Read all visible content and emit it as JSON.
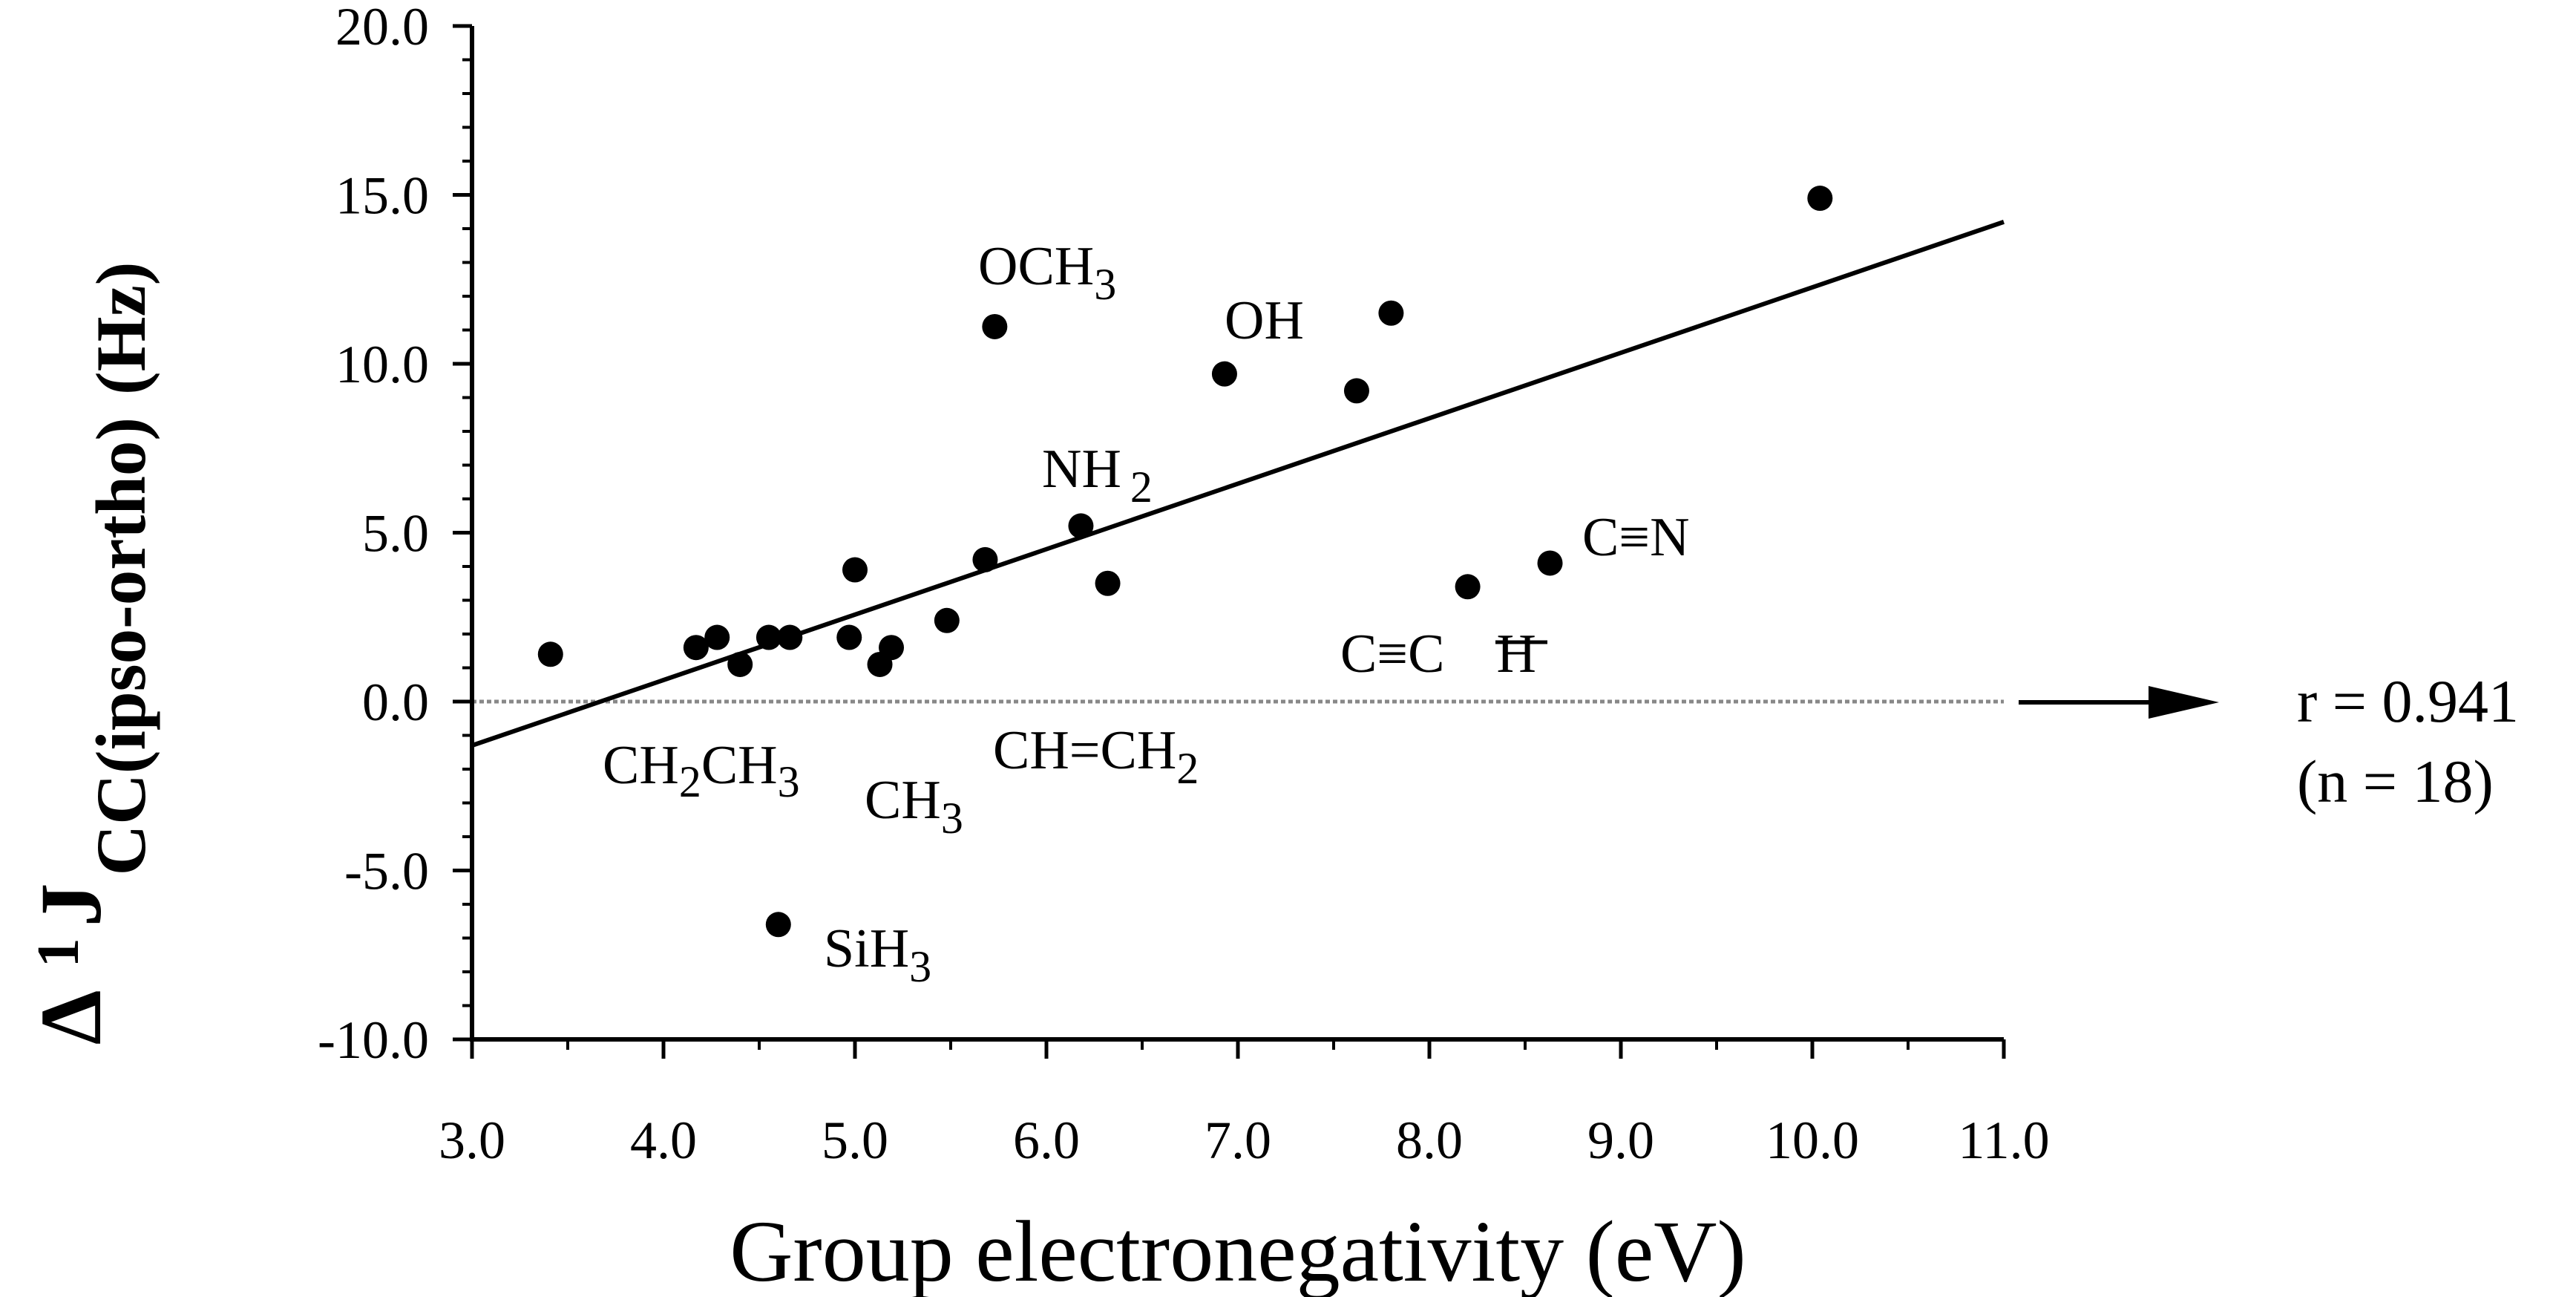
{
  "chart_data": {
    "type": "scatter",
    "title": "",
    "xlabel": "Group electronegativity (eV)",
    "ylabel": {
      "delta": "Δ",
      "superscript": "1",
      "symbol": "J",
      "subscript": "CC(ipso-ortho)",
      "unit": "(Hz)"
    },
    "xlim": [
      3.0,
      11.0
    ],
    "ylim": [
      -10.0,
      20.0
    ],
    "x_ticks": [
      "3.0",
      "4.0",
      "5.0",
      "6.0",
      "7.0",
      "8.0",
      "9.0",
      "10.0",
      "11.0"
    ],
    "y_ticks": [
      "-10.0",
      "-5.0",
      "0.0",
      "5.0",
      "10.0",
      "15.0",
      "20.0"
    ],
    "reference_line_y": 0.0,
    "points": [
      {
        "x": 3.41,
        "y": 1.4
      },
      {
        "x": 4.17,
        "y": 1.6
      },
      {
        "x": 4.28,
        "y": 1.9
      },
      {
        "x": 4.4,
        "y": 1.1
      },
      {
        "x": 4.55,
        "y": 1.9
      },
      {
        "x": 4.6,
        "y": -6.6
      },
      {
        "x": 4.66,
        "y": 1.9
      },
      {
        "x": 4.97,
        "y": 1.9
      },
      {
        "x": 5.0,
        "y": 3.9
      },
      {
        "x": 5.13,
        "y": 1.1
      },
      {
        "x": 5.19,
        "y": 1.6
      },
      {
        "x": 5.48,
        "y": 2.4
      },
      {
        "x": 5.68,
        "y": 4.2
      },
      {
        "x": 5.73,
        "y": 11.1
      },
      {
        "x": 6.18,
        "y": 5.2
      },
      {
        "x": 6.32,
        "y": 3.5
      },
      {
        "x": 6.93,
        "y": 9.7
      },
      {
        "x": 7.62,
        "y": 9.2
      },
      {
        "x": 7.8,
        "y": 11.5
      },
      {
        "x": 8.2,
        "y": 3.4
      },
      {
        "x": 8.63,
        "y": 4.1
      },
      {
        "x": 10.04,
        "y": 14.9
      }
    ],
    "regression": {
      "x": [
        3.0,
        11.0
      ],
      "y": [
        -1.3,
        14.2
      ]
    },
    "annotations": [
      {
        "name": "och3",
        "base": "OCH",
        "sub": "3",
        "tail": ""
      },
      {
        "name": "oh",
        "base": "OH",
        "sub": "",
        "tail": ""
      },
      {
        "name": "nh2",
        "base": "NH",
        "sub": "2",
        "tail": ""
      },
      {
        "name": "cn",
        "base": "C≡N",
        "sub": "",
        "tail": ""
      },
      {
        "name": "ccch",
        "base": "C≡C",
        "sub": "",
        "tail": "H"
      },
      {
        "name": "ch2ch3",
        "base": "CH",
        "sub": "2",
        "tail": "CH",
        "sub2": "3"
      },
      {
        "name": "ch3",
        "base": "CH",
        "sub": "3",
        "tail": ""
      },
      {
        "name": "chch2",
        "base": "CH=CH",
        "sub": "2",
        "tail": ""
      },
      {
        "name": "sih3",
        "base": "SiH",
        "sub": "3",
        "tail": ""
      }
    ],
    "stats": {
      "r_text": "r = 0.941",
      "n_text": "(n = 18)"
    }
  }
}
